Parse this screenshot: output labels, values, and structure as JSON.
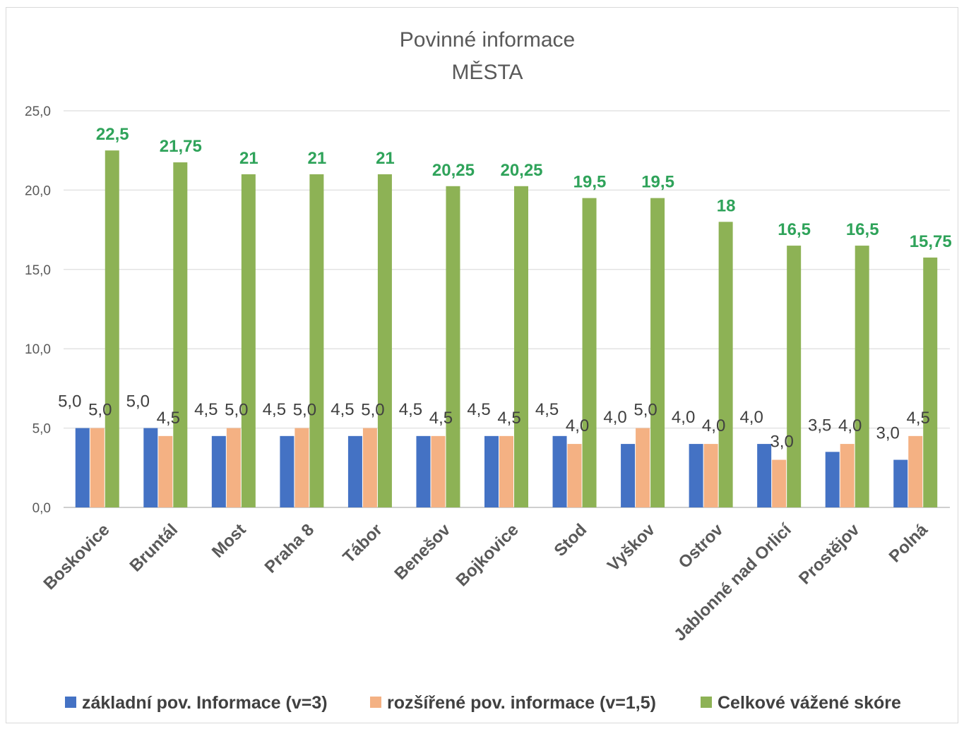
{
  "chart_data": {
    "type": "bar",
    "title": "Povinné informace",
    "subtitle": "MĚSTA",
    "categories": [
      "Boskovice",
      "Bruntál",
      "Most",
      "Praha 8",
      "Tábor",
      "Benešov",
      "Bojkovice",
      "Stod",
      "Vyškov",
      "Ostrov",
      "Jablonné nad Orlicí",
      "Prostějov",
      "Polná"
    ],
    "series": [
      {
        "name": "základní pov. Informace (v=3)",
        "color": "#4472c4",
        "values": [
          5.0,
          5.0,
          4.5,
          4.5,
          4.5,
          4.5,
          4.5,
          4.5,
          4.0,
          4.0,
          4.0,
          3.5,
          3.0
        ],
        "labels": [
          "5,0",
          "5,0",
          "4,5",
          "4,5",
          "4,5",
          "4,5",
          "4,5",
          "4,5",
          "4,0",
          "4,0",
          "4,0",
          "3,5",
          "3,0"
        ]
      },
      {
        "name": "rozšířené pov. informace (v=1,5)",
        "color": "#f4b183",
        "values": [
          5.0,
          4.5,
          5.0,
          5.0,
          5.0,
          4.5,
          4.5,
          4.0,
          5.0,
          4.0,
          3.0,
          4.0,
          4.5
        ],
        "labels": [
          "5,0",
          "4,5",
          "5,0",
          "5,0",
          "5,0",
          "4,5",
          "4,5",
          "4,0",
          "5,0",
          "4,0",
          "3,0",
          "4,0",
          "4,5"
        ]
      },
      {
        "name": "Celkové vážené skóre",
        "color": "#8db255",
        "values": [
          22.5,
          21.75,
          21,
          21,
          21,
          20.25,
          20.25,
          19.5,
          19.5,
          18,
          16.5,
          16.5,
          15.75
        ],
        "labels": [
          "22,5",
          "21,75",
          "21",
          "21",
          "21",
          "20,25",
          "20,25",
          "19,5",
          "19,5",
          "18",
          "16,5",
          "16,5",
          "15,75"
        ]
      }
    ],
    "ylim": [
      0,
      25
    ],
    "yticks": [
      "0,0",
      "5,0",
      "10,0",
      "15,0",
      "20,0",
      "25,0"
    ],
    "ytick_values": [
      0,
      5,
      10,
      15,
      20,
      25
    ],
    "grid": true,
    "legend_position": "bottom",
    "xlabel": "",
    "ylabel": ""
  }
}
